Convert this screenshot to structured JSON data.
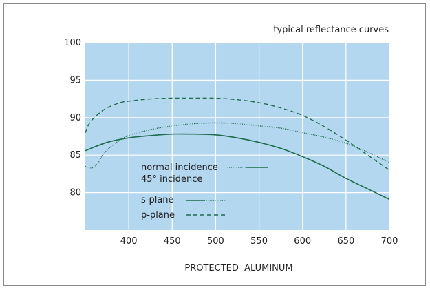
{
  "chart_data": {
    "type": "line",
    "title": "typical reflectance curves",
    "xlabel": "PROTECTED  ALUMINUM",
    "ylabel": "",
    "xlim": [
      350,
      700
    ],
    "ylim": [
      75,
      100
    ],
    "x_ticks": [
      400,
      450,
      500,
      550,
      600,
      650,
      700
    ],
    "y_ticks": [
      80,
      85,
      90,
      95,
      100
    ],
    "grid": true,
    "background_color": "#b3d7ef",
    "line_color": "#1f6b4c",
    "legend": {
      "placement": "center-left",
      "groups": [
        {
          "label": "normal incidence",
          "style": "solid",
          "second_style": "dotted"
        },
        {
          "label": "45° incidence"
        },
        {
          "label": "s-plane",
          "style": "solid",
          "second_style": "dotted"
        },
        {
          "label": "p-plane",
          "style": "dashed"
        }
      ]
    },
    "series": [
      {
        "style": "solid",
        "x": [
          350,
          375,
          400,
          425,
          450,
          475,
          500,
          525,
          550,
          575,
          600,
          625,
          650,
          675,
          700
        ],
        "values": [
          85.6,
          86.7,
          87.3,
          87.6,
          87.8,
          87.8,
          87.7,
          87.3,
          86.7,
          85.9,
          84.8,
          83.5,
          81.9,
          80.5,
          79.1
        ]
      },
      {
        "style": "dotted",
        "x": [
          350,
          355,
          360,
          365,
          370,
          380,
          390,
          400,
          425,
          450,
          475,
          500,
          525,
          550,
          575,
          600,
          625,
          650,
          675,
          700
        ],
        "values": [
          83.5,
          83.3,
          83.4,
          84.0,
          85.0,
          86.2,
          87.0,
          87.6,
          88.4,
          88.9,
          89.2,
          89.3,
          89.2,
          88.9,
          88.6,
          88.0,
          87.4,
          86.6,
          85.4,
          84.0
        ]
      },
      {
        "style": "dashed",
        "x": [
          350,
          355,
          365,
          375,
          390,
          400,
          425,
          450,
          475,
          500,
          525,
          550,
          575,
          600,
          625,
          650,
          675,
          700
        ],
        "values": [
          88.0,
          89.3,
          90.5,
          91.3,
          92.0,
          92.2,
          92.5,
          92.6,
          92.6,
          92.6,
          92.4,
          92.0,
          91.3,
          90.3,
          88.8,
          87.0,
          85.0,
          83.0
        ]
      }
    ]
  }
}
